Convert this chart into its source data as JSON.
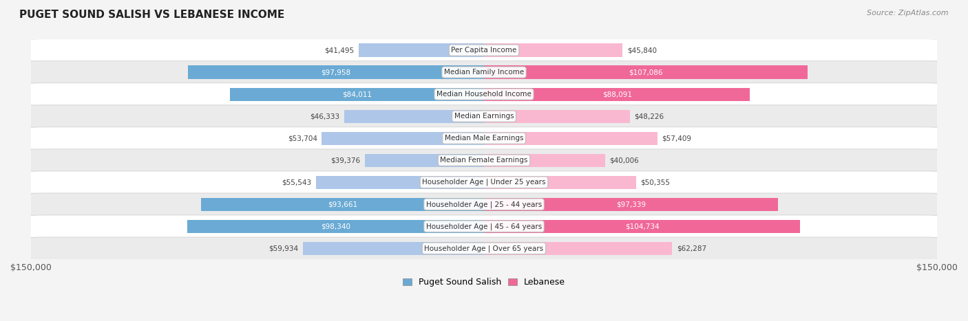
{
  "title": "PUGET SOUND SALISH VS LEBANESE INCOME",
  "source": "Source: ZipAtlas.com",
  "categories": [
    "Per Capita Income",
    "Median Family Income",
    "Median Household Income",
    "Median Earnings",
    "Median Male Earnings",
    "Median Female Earnings",
    "Householder Age | Under 25 years",
    "Householder Age | 25 - 44 years",
    "Householder Age | 45 - 64 years",
    "Householder Age | Over 65 years"
  ],
  "left_values": [
    41495,
    97958,
    84011,
    46333,
    53704,
    39376,
    55543,
    93661,
    98340,
    59934
  ],
  "right_values": [
    45840,
    107086,
    88091,
    48226,
    57409,
    40006,
    50355,
    97339,
    104734,
    62287
  ],
  "left_labels": [
    "$41,495",
    "$97,958",
    "$84,011",
    "$46,333",
    "$53,704",
    "$39,376",
    "$55,543",
    "$93,661",
    "$98,340",
    "$59,934"
  ],
  "right_labels": [
    "$45,840",
    "$107,086",
    "$88,091",
    "$48,226",
    "$57,409",
    "$40,006",
    "$50,355",
    "$97,339",
    "$104,734",
    "$62,287"
  ],
  "left_color_normal": "#aec6e8",
  "left_color_highlight": "#6aaad4",
  "right_color_normal": "#f9b8d0",
  "right_color_highlight": "#f06898",
  "highlight_rows": [
    1,
    2,
    7,
    8
  ],
  "max_value": 150000,
  "bar_height": 0.6,
  "background_color": "#f4f4f4",
  "row_bg_even": "#ffffff",
  "row_bg_odd": "#ebebeb",
  "xlabel_left": "$150,000",
  "xlabel_right": "$150,000",
  "legend_left": "Puget Sound Salish",
  "legend_right": "Lebanese",
  "left_label_color_normal": "#444444",
  "left_label_color_highlight": "#ffffff",
  "right_label_color_normal": "#444444",
  "right_label_color_highlight": "#ffffff"
}
